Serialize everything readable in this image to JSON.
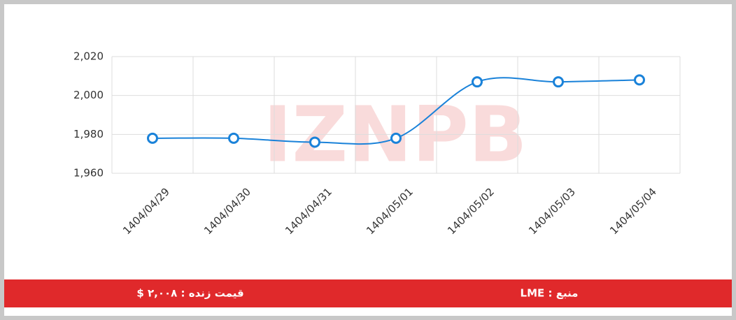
{
  "chart_data": {
    "type": "line",
    "categories": [
      "1404/04/29",
      "1404/04/30",
      "1404/04/31",
      "1404/05/01",
      "1404/05/02",
      "1404/05/03",
      "1404/05/04"
    ],
    "series": [
      {
        "name": "LME",
        "color": "#1a82d9",
        "values": [
          1978,
          1978,
          1976,
          1978,
          2007,
          2007,
          2008
        ]
      }
    ],
    "ylim": [
      1960,
      2020
    ],
    "yticks": [
      {
        "value": 1960,
        "label": "1,960"
      },
      {
        "value": 1980,
        "label": "1,980"
      },
      {
        "value": 2000,
        "label": "2,000"
      },
      {
        "value": 2020,
        "label": "2,020"
      }
    ],
    "grid": true
  },
  "watermark": "IZNPB",
  "footer": {
    "price": "قیمت زنده : ۲,۰۰۸ $",
    "source": "منبع : LME"
  }
}
